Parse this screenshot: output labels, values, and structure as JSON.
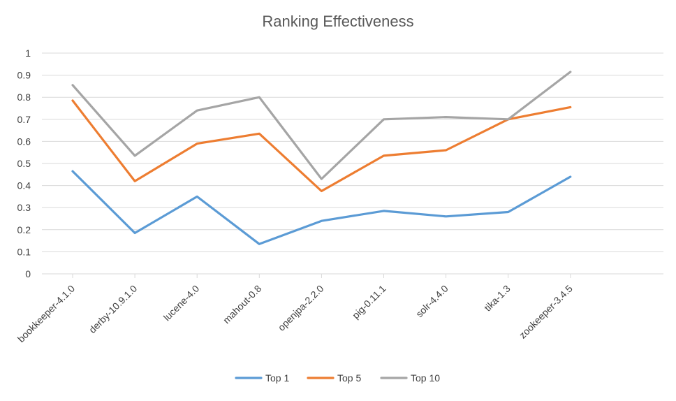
{
  "chart_data": {
    "type": "line",
    "title": "Ranking Effectiveness",
    "xlabel": "",
    "ylabel": "",
    "categories": [
      "bookkeeper-4.1.0",
      "derby-10.9.1.0",
      "lucene-4.0",
      "mahout-0.8",
      "openjpa-2.2.0",
      "pig-0.11.1",
      "solr-4.4.0",
      "tika-1.3",
      "zookeeper-3.4.5"
    ],
    "y_ticks": [
      "0",
      "0.1",
      "0.2",
      "0.3",
      "0.4",
      "0.5",
      "0.6",
      "0.7",
      "0.8",
      "0.9",
      "1"
    ],
    "ylim": [
      0,
      1
    ],
    "grid": true,
    "legend_position": "bottom",
    "series": [
      {
        "name": "Top 1",
        "color": "#5B9BD5",
        "values": [
          0.465,
          0.185,
          0.35,
          0.135,
          0.24,
          0.285,
          0.26,
          0.28,
          0.44
        ]
      },
      {
        "name": "Top 5",
        "color": "#ED7D31",
        "values": [
          0.785,
          0.42,
          0.59,
          0.635,
          0.375,
          0.535,
          0.56,
          0.7,
          0.755
        ]
      },
      {
        "name": "Top 10",
        "color": "#A5A5A5",
        "values": [
          0.855,
          0.535,
          0.74,
          0.8,
          0.43,
          0.7,
          0.71,
          0.7,
          0.915
        ]
      }
    ]
  }
}
